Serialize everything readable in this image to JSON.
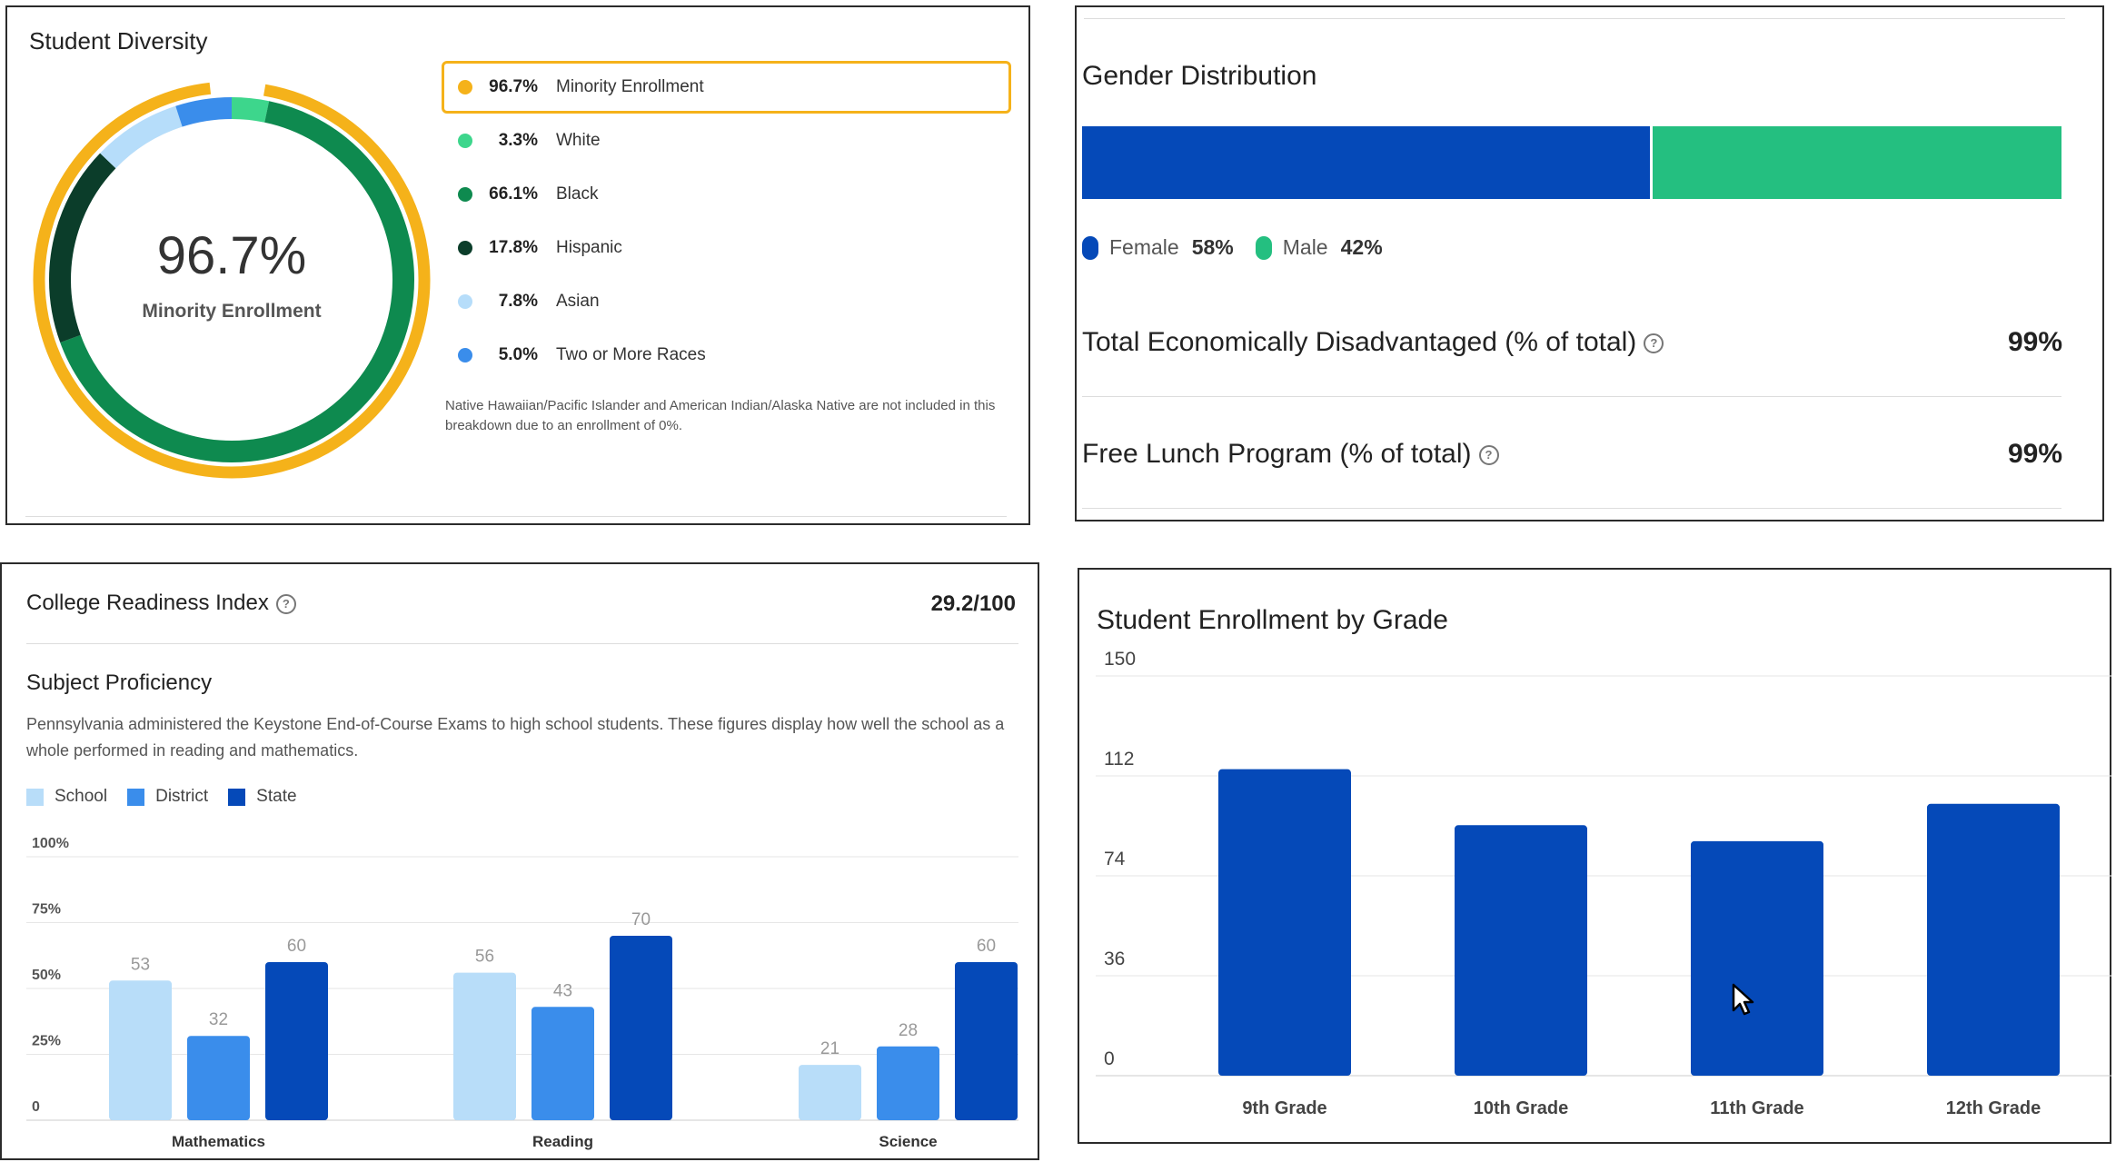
{
  "diversity": {
    "title": "Student Diversity",
    "center_value": "96.7%",
    "center_label": "Minority Enrollment",
    "items": [
      {
        "pct": "96.7%",
        "label": "Minority Enrollment",
        "color": "#F5B21A"
      },
      {
        "pct": "3.3%",
        "label": "White",
        "color": "#3DD68C"
      },
      {
        "pct": "66.1%",
        "label": "Black",
        "color": "#0E8A4F"
      },
      {
        "pct": "17.8%",
        "label": "Hispanic",
        "color": "#0B3D2A"
      },
      {
        "pct": "7.8%",
        "label": "Asian",
        "color": "#B6DDFA"
      },
      {
        "pct": "5.0%",
        "label": "Two or More Races",
        "color": "#3A8DEB"
      }
    ],
    "note": "Native Hawaiian/Pacific Islander and American Indian/Alaska Native are not included in this breakdown due to an enrollment of 0%."
  },
  "gender": {
    "title": "Gender Distribution",
    "female_label": "Female",
    "female_pct": "58%",
    "female_value": 58,
    "male_label": "Male",
    "male_pct": "42%",
    "male_value": 42,
    "female_color": "#0549B8",
    "male_color": "#24BF80",
    "econ_label": "Total Economically Disadvantaged (% of total)",
    "econ_value": "99%",
    "lunch_label": "Free Lunch Program (% of total)",
    "lunch_value": "99%",
    "help_glyph": "?"
  },
  "college": {
    "title": "College Readiness Index",
    "score": "29.2/100",
    "subject_title": "Subject Proficiency",
    "description": "Pennsylvania administered the Keystone End-of-Course Exams to high school students. These figures display how well the school as a whole performed in reading and mathematics.",
    "legend": [
      {
        "label": "School",
        "color": "#B8DDF9"
      },
      {
        "label": "District",
        "color": "#3A8DEB"
      },
      {
        "label": "State",
        "color": "#0549B8"
      }
    ]
  },
  "enrollment_title": "Student Enrollment by Grade",
  "chart_data": [
    {
      "type": "bar",
      "title": "Subject Proficiency",
      "categories": [
        "Mathematics",
        "Reading",
        "Science"
      ],
      "series": [
        {
          "name": "School",
          "values": [
            53,
            56,
            21
          ]
        },
        {
          "name": "District",
          "values": [
            32,
            43,
            28
          ]
        },
        {
          "name": "State",
          "values": [
            60,
            70,
            60
          ]
        }
      ],
      "yticks": [
        "0",
        "25%",
        "50%",
        "75%",
        "100%"
      ],
      "ylim": [
        0,
        100
      ]
    },
    {
      "type": "bar",
      "title": "Student Enrollment by Grade",
      "categories": [
        "9th Grade",
        "10th Grade",
        "11th Grade",
        "12th Grade"
      ],
      "values": [
        115,
        94,
        88,
        102
      ],
      "yticks": [
        "0",
        "36",
        "74",
        "112",
        "150"
      ],
      "ylim": [
        0,
        150
      ],
      "color": "#0549B8"
    }
  ]
}
